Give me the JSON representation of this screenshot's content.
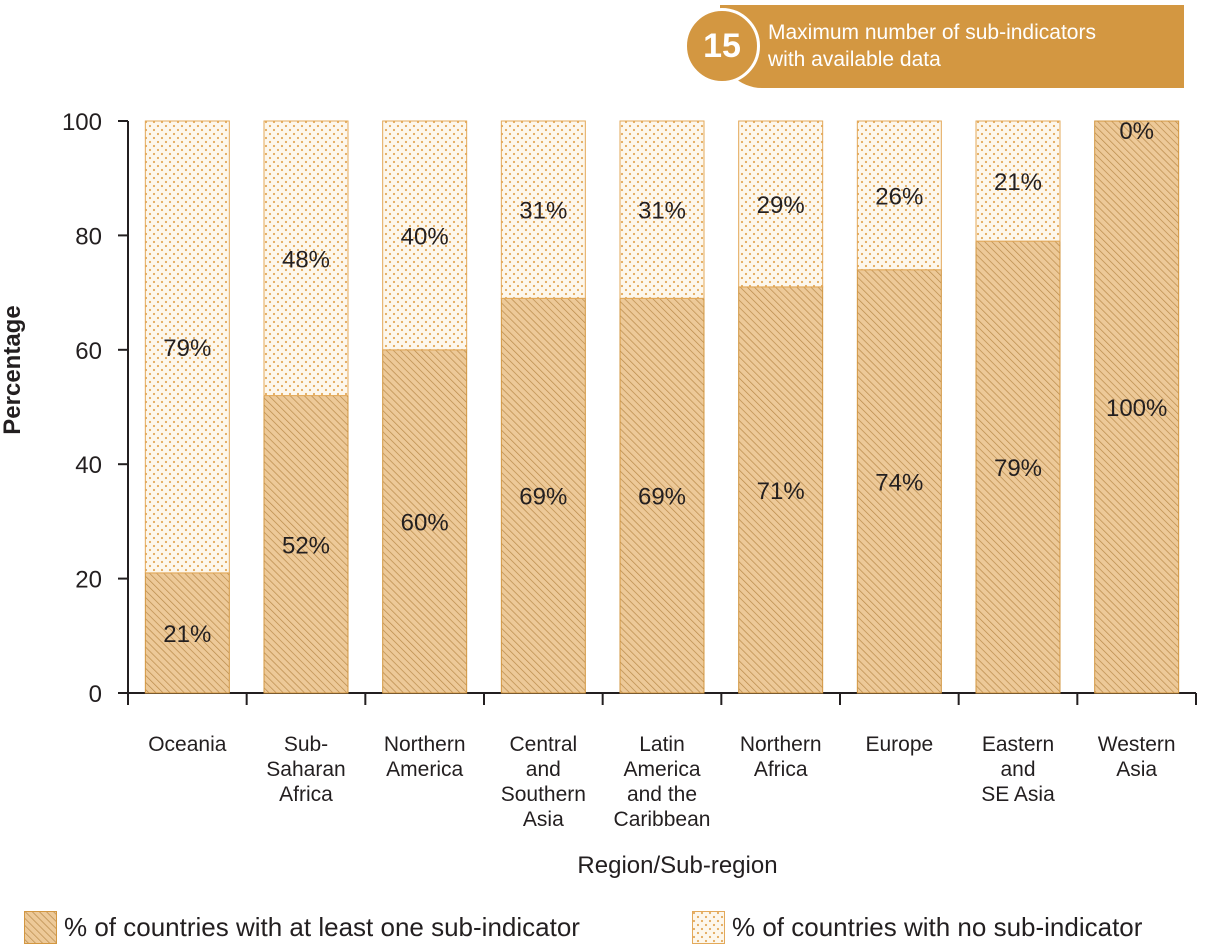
{
  "badge": {
    "number": "15",
    "line1": "Maximum number of sub-indicators",
    "line2": "with available data"
  },
  "legend": {
    "at_least_one": "% of countries with at least one sub-indicator",
    "no_sub": "% of countries with no sub-indicator"
  },
  "colors": {
    "accent": "#d39741",
    "hatch_fill": "#edc998",
    "hatch_line": "#b98a4a",
    "dot_fill": "#fdf7ec",
    "dot": "#e3a95a",
    "axis": "#231f20"
  },
  "chart_data": {
    "type": "bar",
    "stacked": true,
    "xlabel": "Region/Sub-region",
    "ylabel": "Percentage",
    "ylim": [
      0,
      100
    ],
    "yticks": [
      0,
      20,
      40,
      60,
      80,
      100
    ],
    "grid": false,
    "legend_position": "bottom",
    "categories": [
      [
        "Oceania"
      ],
      [
        "Sub-",
        "Saharan",
        "Africa"
      ],
      [
        "Northern",
        "America"
      ],
      [
        "Central",
        "and",
        "Southern",
        "Asia"
      ],
      [
        "Latin",
        "America",
        "and the",
        "Caribbean"
      ],
      [
        "Northern",
        "Africa"
      ],
      [
        "Europe"
      ],
      [
        "Eastern",
        "and",
        "SE Asia"
      ],
      [
        "Western",
        "Asia"
      ]
    ],
    "series": [
      {
        "name": "% of countries with at least one sub-indicator",
        "values": [
          21,
          52,
          60,
          69,
          69,
          71,
          74,
          79,
          100
        ],
        "labels": [
          "21%",
          "52%",
          "60%",
          "69%",
          "69%",
          "71%",
          "74%",
          "79%",
          "100%"
        ]
      },
      {
        "name": "% of countries with no sub-indicator",
        "values": [
          79,
          48,
          40,
          31,
          31,
          29,
          26,
          21,
          0
        ],
        "labels": [
          "79%",
          "48%",
          "40%",
          "31%",
          "31%",
          "29%",
          "26%",
          "21%",
          "0%"
        ]
      }
    ]
  }
}
